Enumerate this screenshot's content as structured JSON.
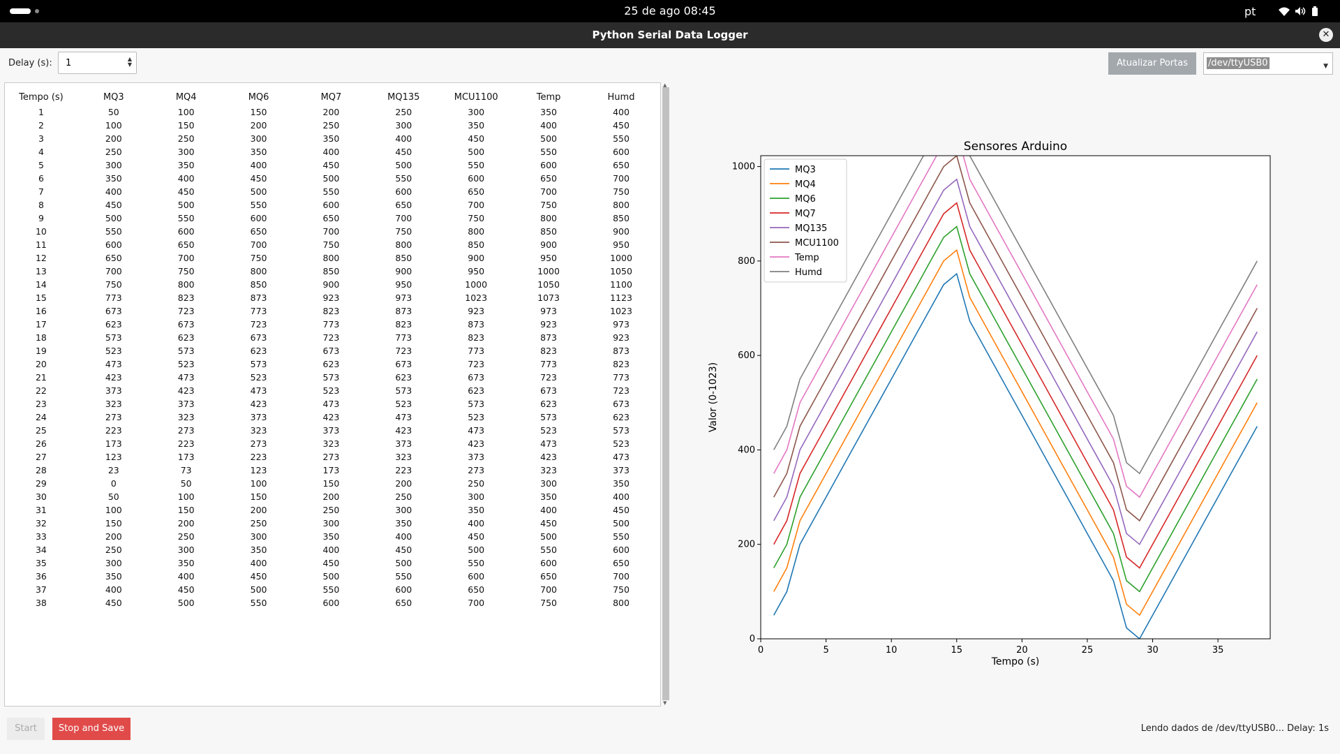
{
  "topbar": {
    "datetime": "25 de ago  08:45",
    "lang": "pt"
  },
  "window": {
    "title": "Python Serial Data Logger"
  },
  "controls": {
    "delay_label": "Delay (s):",
    "delay_value": "1",
    "refresh_ports_label": "Atualizar Portas",
    "port_value": "/dev/ttyUSB0"
  },
  "table": {
    "headers": [
      "Tempo (s)",
      "MQ3",
      "MQ4",
      "MQ6",
      "MQ7",
      "MQ135",
      "MCU1100",
      "Temp",
      "Humd"
    ],
    "rows": [
      [
        1,
        50,
        100,
        150,
        200,
        250,
        300,
        350,
        400
      ],
      [
        2,
        100,
        150,
        200,
        250,
        300,
        350,
        400,
        450
      ],
      [
        3,
        200,
        250,
        300,
        350,
        400,
        450,
        500,
        550
      ],
      [
        4,
        250,
        300,
        350,
        400,
        450,
        500,
        550,
        600
      ],
      [
        5,
        300,
        350,
        400,
        450,
        500,
        550,
        600,
        650
      ],
      [
        6,
        350,
        400,
        450,
        500,
        550,
        600,
        650,
        700
      ],
      [
        7,
        400,
        450,
        500,
        550,
        600,
        650,
        700,
        750
      ],
      [
        8,
        450,
        500,
        550,
        600,
        650,
        700,
        750,
        800
      ],
      [
        9,
        500,
        550,
        600,
        650,
        700,
        750,
        800,
        850
      ],
      [
        10,
        550,
        600,
        650,
        700,
        750,
        800,
        850,
        900
      ],
      [
        11,
        600,
        650,
        700,
        750,
        800,
        850,
        900,
        950
      ],
      [
        12,
        650,
        700,
        750,
        800,
        850,
        900,
        950,
        1000
      ],
      [
        13,
        700,
        750,
        800,
        850,
        900,
        950,
        1000,
        1050
      ],
      [
        14,
        750,
        800,
        850,
        900,
        950,
        1000,
        1050,
        1100
      ],
      [
        15,
        773,
        823,
        873,
        923,
        973,
        1023,
        1073,
        1123
      ],
      [
        16,
        673,
        723,
        773,
        823,
        873,
        923,
        973,
        1023
      ],
      [
        17,
        623,
        673,
        723,
        773,
        823,
        873,
        923,
        973
      ],
      [
        18,
        573,
        623,
        673,
        723,
        773,
        823,
        873,
        923
      ],
      [
        19,
        523,
        573,
        623,
        673,
        723,
        773,
        823,
        873
      ],
      [
        20,
        473,
        523,
        573,
        623,
        673,
        723,
        773,
        823
      ],
      [
        21,
        423,
        473,
        523,
        573,
        623,
        673,
        723,
        773
      ],
      [
        22,
        373,
        423,
        473,
        523,
        573,
        623,
        673,
        723
      ],
      [
        23,
        323,
        373,
        423,
        473,
        523,
        573,
        623,
        673
      ],
      [
        24,
        273,
        323,
        373,
        423,
        473,
        523,
        573,
        623
      ],
      [
        25,
        223,
        273,
        323,
        373,
        423,
        473,
        523,
        573
      ],
      [
        26,
        173,
        223,
        273,
        323,
        373,
        423,
        473,
        523
      ],
      [
        27,
        123,
        173,
        223,
        273,
        323,
        373,
        423,
        473
      ],
      [
        28,
        23,
        73,
        123,
        173,
        223,
        273,
        323,
        373
      ],
      [
        29,
        0,
        50,
        100,
        150,
        200,
        250,
        300,
        350
      ],
      [
        30,
        50,
        100,
        150,
        200,
        250,
        300,
        350,
        400
      ],
      [
        31,
        100,
        150,
        200,
        250,
        300,
        350,
        400,
        450
      ],
      [
        32,
        150,
        200,
        250,
        300,
        350,
        400,
        450,
        500
      ],
      [
        33,
        200,
        250,
        300,
        350,
        400,
        450,
        500,
        550
      ],
      [
        34,
        250,
        300,
        350,
        400,
        450,
        500,
        550,
        600
      ],
      [
        35,
        300,
        350,
        400,
        450,
        500,
        550,
        600,
        650
      ],
      [
        36,
        350,
        400,
        450,
        500,
        550,
        600,
        650,
        700
      ],
      [
        37,
        400,
        450,
        500,
        550,
        600,
        650,
        700,
        750
      ],
      [
        38,
        450,
        500,
        550,
        600,
        650,
        700,
        750,
        800
      ]
    ]
  },
  "buttons": {
    "start_label": "Start",
    "stop_label": "Stop and Save"
  },
  "status": {
    "text": "Lendo dados de /dev/ttyUSB0... Delay: 1s"
  },
  "chart_data": {
    "type": "line",
    "title": "Sensores Arduino",
    "xlabel": "Tempo (s)",
    "ylabel": "Valor (0-1023)",
    "xlim": [
      0,
      39
    ],
    "ylim": [
      0,
      1023
    ],
    "xticks": [
      0,
      5,
      10,
      15,
      20,
      25,
      30,
      35
    ],
    "yticks": [
      0,
      200,
      400,
      600,
      800,
      1000
    ],
    "legend_position": "top-left",
    "grid": false,
    "series": [
      {
        "name": "MQ3",
        "color": "#1f77b4"
      },
      {
        "name": "MQ4",
        "color": "#ff7f0e"
      },
      {
        "name": "MQ6",
        "color": "#2ca02c"
      },
      {
        "name": "MQ7",
        "color": "#d62728"
      },
      {
        "name": "MQ135",
        "color": "#9467bd"
      },
      {
        "name": "MCU1100",
        "color": "#8c564b"
      },
      {
        "name": "Temp",
        "color": "#e377c2"
      },
      {
        "name": "Humd",
        "color": "#7f7f7f"
      }
    ],
    "values_source": "table.rows (column 0 = x, columns 1..8 = series)"
  }
}
